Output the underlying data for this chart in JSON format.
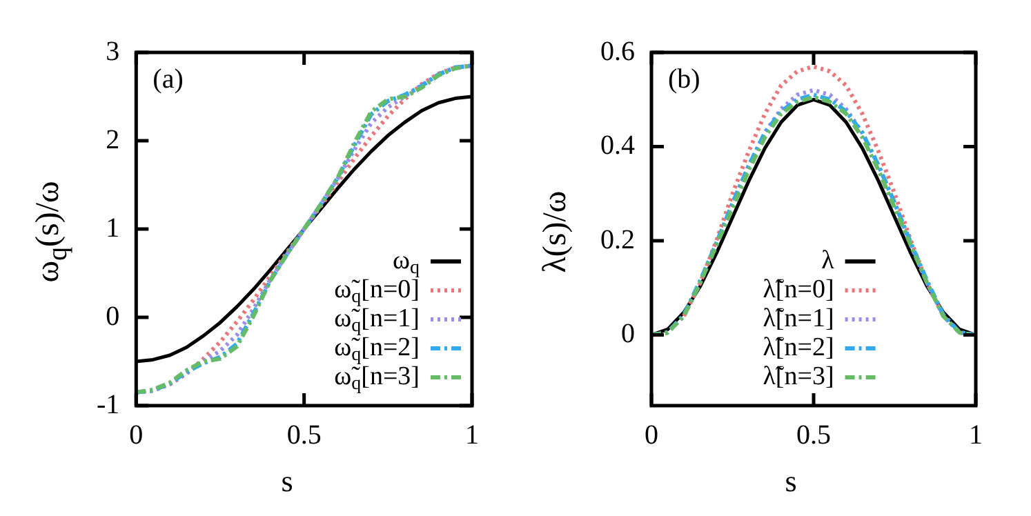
{
  "chart_data": [
    {
      "type": "line",
      "annotations": [
        "(a)"
      ],
      "xlabel": "s",
      "ylabel": "ω$_{q}$(s)/ω",
      "x": [
        0,
        0.05,
        0.1,
        0.15,
        0.2,
        0.25,
        0.3,
        0.35,
        0.4,
        0.45,
        0.5,
        0.55,
        0.6,
        0.65,
        0.7,
        0.75,
        0.8,
        0.85,
        0.9,
        0.95,
        1
      ],
      "xlim": [
        0,
        1
      ],
      "xticks": [
        0,
        0.5,
        1
      ],
      "ylim": [
        -1,
        3
      ],
      "yticks": [
        -1,
        0,
        1,
        2,
        3
      ],
      "grid": false,
      "legend": "bottom right",
      "series": [
        {
          "name": "ω$_{q}$",
          "color": "#000000",
          "line_style": "solid",
          "values": [
            -0.5,
            -0.48,
            -0.43,
            -0.34,
            -0.21,
            -0.06,
            0.12,
            0.32,
            0.54,
            0.77,
            1,
            1.23,
            1.46,
            1.68,
            1.88,
            2.06,
            2.21,
            2.34,
            2.43,
            2.48,
            2.5
          ]
        },
        {
          "name": "ω̃$_{q}$[n=0]",
          "color": "#e8767a",
          "line_style": "dotted",
          "values": [
            -0.85,
            -0.83,
            -0.76,
            -0.64,
            -0.47,
            -0.28,
            -0.05,
            0.2,
            0.47,
            0.74,
            1,
            1.26,
            1.53,
            1.8,
            2.05,
            2.28,
            2.47,
            2.64,
            2.76,
            2.83,
            2.85
          ]
        },
        {
          "name": "ω̃$_{q}$[n=1]",
          "color": "#9a8ee8",
          "line_style": "dotted",
          "values": [
            -0.85,
            -0.83,
            -0.75,
            -0.63,
            -0.5,
            -0.38,
            -0.2,
            0.1,
            0.43,
            0.72,
            1,
            1.28,
            1.57,
            1.9,
            2.2,
            2.38,
            2.5,
            2.63,
            2.75,
            2.83,
            2.85
          ]
        },
        {
          "name": "ω̃$_{q}$[n=2]",
          "color": "#33aaee",
          "line_style": "dashed",
          "values": [
            -0.85,
            -0.83,
            -0.75,
            -0.62,
            -0.52,
            -0.45,
            -0.3,
            0.05,
            0.42,
            0.72,
            1,
            1.28,
            1.58,
            1.95,
            2.3,
            2.45,
            2.52,
            2.62,
            2.75,
            2.83,
            2.85
          ]
        },
        {
          "name": "ω̃$_{q}$[n=3]",
          "color": "#66bb66",
          "line_style": "dashed",
          "values": [
            -0.85,
            -0.82,
            -0.74,
            -0.6,
            -0.5,
            -0.47,
            -0.33,
            0.02,
            0.42,
            0.72,
            1,
            1.28,
            1.58,
            1.98,
            2.33,
            2.47,
            2.5,
            2.6,
            2.74,
            2.82,
            2.85
          ]
        }
      ]
    },
    {
      "type": "line",
      "annotations": [
        "(b)"
      ],
      "xlabel": "s",
      "ylabel": "λ(s)/ω",
      "x": [
        0,
        0.05,
        0.1,
        0.15,
        0.2,
        0.25,
        0.3,
        0.35,
        0.4,
        0.45,
        0.5,
        0.55,
        0.6,
        0.65,
        0.7,
        0.75,
        0.8,
        0.85,
        0.9,
        0.95,
        1
      ],
      "xlim": [
        0,
        1
      ],
      "xticks": [
        0,
        0.5,
        1
      ],
      "ylim": [
        -0.15,
        0.6
      ],
      "yticks": [
        0,
        0.2,
        0.4,
        0.6
      ],
      "grid": false,
      "legend": "bottom",
      "series": [
        {
          "name": "λ",
          "color": "#000000",
          "line_style": "solid",
          "values": [
            0,
            0.012,
            0.048,
            0.103,
            0.173,
            0.25,
            0.327,
            0.397,
            0.452,
            0.488,
            0.5,
            0.488,
            0.452,
            0.397,
            0.327,
            0.25,
            0.173,
            0.103,
            0.048,
            0.012,
            0
          ]
        },
        {
          "name": "λ̃[n=0]",
          "color": "#e8767a",
          "line_style": "dotted",
          "values": [
            null,
            null,
            0.04,
            0.11,
            0.2,
            0.3,
            0.39,
            0.47,
            0.53,
            0.56,
            0.57,
            0.56,
            0.53,
            0.47,
            0.39,
            0.3,
            0.2,
            0.11,
            0.04,
            null,
            null
          ]
        },
        {
          "name": "λ̃[n=1]",
          "color": "#9a8ee8",
          "line_style": "dotted",
          "values": [
            0,
            0.005,
            0.04,
            0.11,
            0.19,
            0.28,
            0.36,
            0.43,
            0.48,
            0.51,
            0.52,
            0.51,
            0.48,
            0.43,
            0.36,
            0.28,
            0.19,
            0.11,
            0.04,
            0.005,
            0
          ]
        },
        {
          "name": "λ̃[n=2]",
          "color": "#33aaee",
          "line_style": "dashed",
          "values": [
            0,
            0.006,
            0.043,
            0.115,
            0.195,
            0.28,
            0.36,
            0.43,
            0.475,
            0.5,
            0.51,
            0.5,
            0.475,
            0.43,
            0.36,
            0.28,
            0.195,
            0.115,
            0.043,
            0.006,
            0
          ]
        },
        {
          "name": "λ̃[n=3]",
          "color": "#66bb66",
          "line_style": "dashed",
          "values": [
            0,
            0.005,
            0.04,
            0.11,
            0.19,
            0.27,
            0.35,
            0.42,
            0.47,
            0.495,
            0.505,
            0.495,
            0.47,
            0.42,
            0.35,
            0.27,
            0.19,
            0.11,
            0.04,
            0.005,
            0
          ]
        }
      ]
    }
  ]
}
